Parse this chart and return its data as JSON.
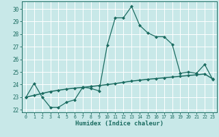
{
  "xlabel": "Humidex (Indice chaleur)",
  "background_color": "#c8e8e8",
  "line_color": "#1a6b60",
  "grid_color": "#b0d8d8",
  "xlim": [
    -0.5,
    23.5
  ],
  "ylim": [
    21.8,
    30.6
  ],
  "xticks": [
    0,
    1,
    2,
    3,
    4,
    5,
    6,
    7,
    8,
    9,
    10,
    11,
    12,
    13,
    14,
    15,
    16,
    17,
    18,
    19,
    20,
    21,
    22,
    23
  ],
  "yticks": [
    22,
    23,
    24,
    25,
    26,
    27,
    28,
    29,
    30
  ],
  "series1_x": [
    0,
    1,
    2,
    3,
    4,
    5,
    6,
    7,
    8,
    9,
    10,
    11,
    12,
    13,
    14,
    15,
    16,
    17,
    18,
    19,
    20,
    21,
    22,
    23
  ],
  "series1_y": [
    23.0,
    24.1,
    23.0,
    22.2,
    22.2,
    22.6,
    22.8,
    23.8,
    23.7,
    23.5,
    27.1,
    29.3,
    29.3,
    30.2,
    28.7,
    28.1,
    27.8,
    27.8,
    27.2,
    24.9,
    25.0,
    24.9,
    25.6,
    24.4
  ],
  "series2_x": [
    0,
    1,
    2,
    3,
    4,
    5,
    6,
    7,
    8,
    9,
    10,
    11,
    12,
    13,
    14,
    15,
    16,
    17,
    18,
    19,
    20,
    21,
    22,
    23
  ],
  "series2_y": [
    23.0,
    23.15,
    23.3,
    23.45,
    23.55,
    23.65,
    23.72,
    23.78,
    23.85,
    23.92,
    24.0,
    24.08,
    24.18,
    24.28,
    24.35,
    24.42,
    24.48,
    24.54,
    24.6,
    24.66,
    24.72,
    24.78,
    24.84,
    24.45
  ]
}
